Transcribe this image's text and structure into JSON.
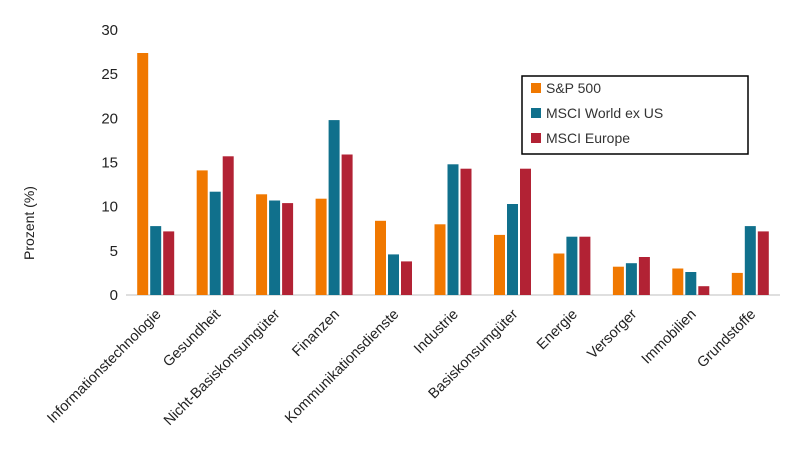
{
  "chart_data": {
    "type": "bar",
    "title": "",
    "xlabel": "",
    "ylabel": "Prozent (%)",
    "ylim": [
      0,
      30
    ],
    "yticks": [
      0,
      5,
      10,
      15,
      20,
      25,
      30
    ],
    "grid": false,
    "legend_position": "top-right",
    "categories": [
      "Informationstechnologie",
      "Gesundheit",
      "Nicht-Basiskonsumgüter",
      "Finanzen",
      "Kommunikationsdienste",
      "Industrie",
      "Basiskonsumgüter",
      "Energie",
      "Versorger",
      "Immobilien",
      "Grundstoffe"
    ],
    "series": [
      {
        "name": "S&P 500",
        "color": "#F07800",
        "values": [
          27.4,
          14.1,
          11.4,
          10.9,
          8.4,
          8.0,
          6.8,
          4.7,
          3.2,
          3.0,
          2.5
        ]
      },
      {
        "name": "MSCI World ex US",
        "color": "#10708C",
        "values": [
          7.8,
          11.7,
          10.7,
          19.8,
          4.6,
          14.8,
          10.3,
          6.6,
          3.6,
          2.6,
          7.8
        ]
      },
      {
        "name": "MSCI Europe",
        "color": "#B22234",
        "values": [
          7.2,
          15.7,
          10.4,
          15.9,
          3.8,
          14.3,
          14.3,
          6.6,
          4.3,
          1.0,
          7.2
        ]
      }
    ]
  }
}
